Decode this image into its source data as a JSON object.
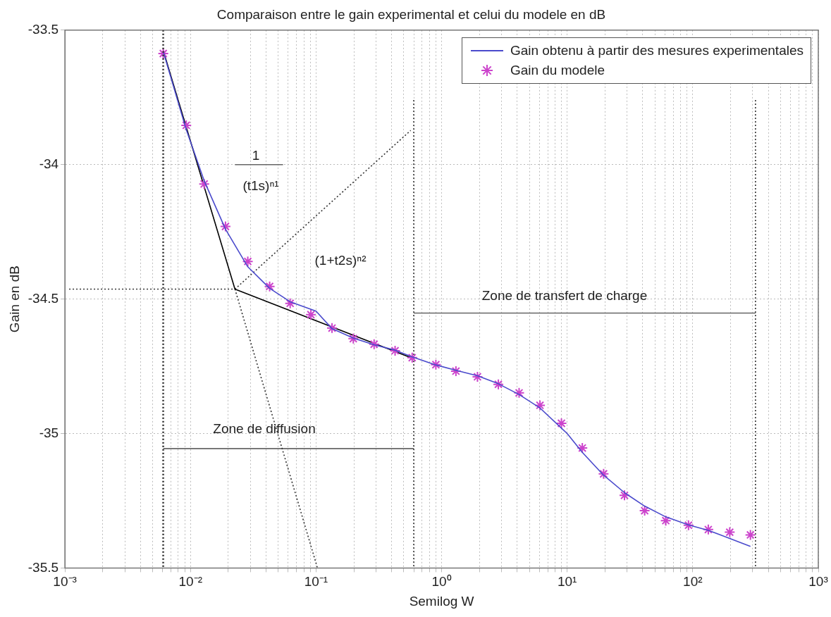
{
  "chart_data": {
    "type": "line",
    "title": "Comparaison entre le gain experimental et celui du modele en dB",
    "xlabel": "Semilog W",
    "ylabel": "Gain en dB",
    "log": "x",
    "grid": true,
    "legend": "top right",
    "xlim": [
      0.001,
      1000
    ],
    "ylim": [
      -35.5,
      -33.5
    ],
    "xticks": [
      {
        "value": 0.001,
        "label": "10⁻³"
      },
      {
        "value": 0.002,
        "label": null
      },
      {
        "value": 0.003,
        "label": null
      },
      {
        "value": 0.004,
        "label": null
      },
      {
        "value": 0.005,
        "label": null
      },
      {
        "value": 0.006,
        "label": null
      },
      {
        "value": 0.007,
        "label": null
      },
      {
        "value": 0.008,
        "label": null
      },
      {
        "value": 0.009,
        "label": null
      },
      {
        "value": 0.01,
        "label": "10⁻²"
      },
      {
        "value": 0.02,
        "label": null
      },
      {
        "value": 0.03,
        "label": null
      },
      {
        "value": 0.04,
        "label": null
      },
      {
        "value": 0.05,
        "label": null
      },
      {
        "value": 0.06,
        "label": null
      },
      {
        "value": 0.07,
        "label": null
      },
      {
        "value": 0.08,
        "label": null
      },
      {
        "value": 0.09,
        "label": null
      },
      {
        "value": 0.1,
        "label": "10⁻¹"
      },
      {
        "value": 0.2,
        "label": null
      },
      {
        "value": 0.3,
        "label": null
      },
      {
        "value": 0.4,
        "label": null
      },
      {
        "value": 0.5,
        "label": null
      },
      {
        "value": 0.6,
        "label": null
      },
      {
        "value": 0.7,
        "label": null
      },
      {
        "value": 0.8,
        "label": null
      },
      {
        "value": 0.9,
        "label": null
      },
      {
        "value": 1,
        "label": "10⁰"
      },
      {
        "value": 2,
        "label": null
      },
      {
        "value": 3,
        "label": null
      },
      {
        "value": 4,
        "label": null
      },
      {
        "value": 5,
        "label": null
      },
      {
        "value": 6,
        "label": null
      },
      {
        "value": 7,
        "label": null
      },
      {
        "value": 8,
        "label": null
      },
      {
        "value": 9,
        "label": null
      },
      {
        "value": 10,
        "label": "10¹"
      },
      {
        "value": 20,
        "label": null
      },
      {
        "value": 30,
        "label": null
      },
      {
        "value": 40,
        "label": null
      },
      {
        "value": 50,
        "label": null
      },
      {
        "value": 60,
        "label": null
      },
      {
        "value": 70,
        "label": null
      },
      {
        "value": 80,
        "label": null
      },
      {
        "value": 90,
        "label": null
      },
      {
        "value": 100,
        "label": "10²"
      },
      {
        "value": 200,
        "label": null
      },
      {
        "value": 300,
        "label": null
      },
      {
        "value": 400,
        "label": null
      },
      {
        "value": 500,
        "label": null
      },
      {
        "value": 600,
        "label": null
      },
      {
        "value": 700,
        "label": null
      },
      {
        "value": 800,
        "label": null
      },
      {
        "value": 900,
        "label": null
      },
      {
        "value": 1000,
        "label": "10³"
      }
    ],
    "yticks": [
      -35.5,
      -35,
      -34.5,
      -34,
      -33.5
    ],
    "series": [
      {
        "name": "Gain obtenu à partir des mesures experimentales",
        "marker": "none",
        "line_style": "solid",
        "color": "#4a4acc",
        "x": [
          0.00607,
          0.00925,
          0.01285,
          0.019,
          0.0286,
          0.0427,
          0.0622,
          0.1,
          0.134,
          0.198,
          0.29,
          0.426,
          0.583,
          0.9,
          1.3,
          1.93,
          2.83,
          4.14,
          6.07,
          9,
          10,
          13.2,
          19.5,
          28.6,
          41.4,
          61,
          92.5,
          133,
          197,
          288
        ],
        "values": [
          -33.58,
          -33.87,
          -34.06,
          -34.24,
          -34.38,
          -34.46,
          -34.51,
          -34.545,
          -34.61,
          -34.645,
          -34.67,
          -34.69,
          -34.715,
          -34.745,
          -34.765,
          -34.785,
          -34.815,
          -34.855,
          -34.905,
          -34.98,
          -35,
          -35.07,
          -35.155,
          -35.22,
          -35.27,
          -35.31,
          -35.34,
          -35.36,
          -35.39,
          -35.42
        ]
      },
      {
        "name": "Gain du modele",
        "type": "scatter",
        "marker": "cross",
        "color": "#cc44cc",
        "x": [
          0.00607,
          0.00925,
          0.01285,
          0.019,
          0.0286,
          0.0427,
          0.0622,
          0.091,
          0.134,
          0.198,
          0.29,
          0.426,
          0.583,
          0.9,
          1.3,
          1.93,
          2.83,
          4.14,
          6.07,
          9,
          13.2,
          19.5,
          28.6,
          41.4,
          61,
          92.5,
          133,
          197,
          288
        ],
        "values": [
          -33.587,
          -33.854,
          -34.072,
          -34.23,
          -34.36,
          -34.453,
          -34.516,
          -34.558,
          -34.608,
          -34.647,
          -34.668,
          -34.692,
          -34.718,
          -34.744,
          -34.768,
          -34.789,
          -34.817,
          -34.849,
          -34.895,
          -34.962,
          -35.054,
          -35.15,
          -35.23,
          -35.287,
          -35.324,
          -35.341,
          -35.357,
          -35.367,
          -35.377
        ]
      },
      {
        "type": "line",
        "marker": "none",
        "line_style": "solid",
        "color": "#000000",
        "x": [
          0.00607,
          0.0226,
          0.607
        ],
        "values": [
          -33.576,
          -34.463,
          -34.723
        ]
      },
      {
        "type": "line",
        "marker": "none",
        "line_style": "dotted",
        "color": "#333333",
        "x": [
          0.0226,
          0.567
        ],
        "values": [
          -34.463,
          -33.873
        ]
      },
      {
        "type": "line",
        "marker": "none",
        "line_style": "dotted",
        "color": "#333333",
        "x": [
          0.0226,
          0.1026
        ],
        "values": [
          -34.463,
          -35.5
        ]
      },
      {
        "type": "line",
        "marker": "none",
        "line_style": "dotted",
        "color": "#333333",
        "x": [
          0.00108,
          0.0226
        ],
        "values": [
          -34.463,
          -34.463
        ]
      },
      {
        "type": "line",
        "marker": "none",
        "line_style": "dotted",
        "color": "#333333",
        "x": [
          0.6,
          0.6
        ],
        "values": [
          -33.76,
          -35.5
        ]
      },
      {
        "type": "line",
        "marker": "none",
        "line_style": "dotted",
        "color": "#333333",
        "x": [
          316,
          316
        ],
        "values": [
          -33.76,
          -35.5
        ]
      },
      {
        "type": "line",
        "marker": "none",
        "line_style": "solid",
        "color": "#666666",
        "x": [
          0.00607,
          0.6
        ],
        "values": [
          -35.056,
          -35.056
        ]
      },
      {
        "type": "line",
        "marker": "none",
        "line_style": "solid",
        "color": "#666666",
        "x": [
          0.6,
          316
        ],
        "values": [
          -34.552,
          -34.552
        ]
      },
      {
        "type": "line",
        "marker": "none",
        "line_style": "solid",
        "color": "#666666",
        "x": [
          0.0226,
          0.0546
        ],
        "values": [
          -34,
          -34
        ]
      }
    ],
    "ref_lines": [
      {
        "axis": "x",
        "value": 0.00607,
        "line_style": "dotted",
        "color": "#333333"
      }
    ],
    "annotations": [
      "1",
      "(t1s)ⁿ¹",
      "(1+t2s)ⁿ²",
      "Zone de diffusion",
      "Zone de transfert de charge"
    ]
  }
}
